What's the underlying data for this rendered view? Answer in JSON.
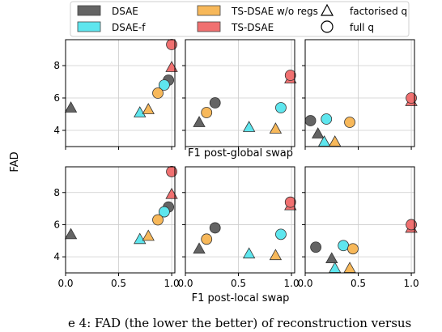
{
  "chart_data": {
    "type": "scatter",
    "ylabel": "FAD",
    "legend": {
      "placement": "top",
      "entries": [
        {
          "label": "DSAE",
          "kind": "swatch",
          "color": "#646464"
        },
        {
          "label": "TS-DSAE w/o regs",
          "kind": "swatch",
          "color": "#f7b85a"
        },
        {
          "label": "factorised q",
          "kind": "marker",
          "shape": "triangle"
        },
        {
          "label": "DSAE-f",
          "kind": "swatch",
          "color": "#5ee6ee"
        },
        {
          "label": "TS-DSAE",
          "kind": "swatch",
          "color": "#f07070"
        },
        {
          "label": "full q",
          "kind": "marker",
          "shape": "circle"
        }
      ]
    },
    "colors": {
      "DSAE": "#646464",
      "DSAE-f": "#5ee6ee",
      "TS-DSAE w/o regs": "#f7b85a",
      "TS-DSAE": "#f07070"
    },
    "ylim": [
      3,
      9.6
    ],
    "yticks": [
      4,
      6,
      8
    ],
    "xlim": [
      0,
      1.03
    ],
    "xticks": [
      0.0,
      0.5,
      1.0
    ],
    "xticklabels": [
      "0.0",
      "0.5",
      "1.0"
    ],
    "grid": true,
    "rows": [
      {
        "xlabel": "F1 post-global swap",
        "show_xticklabels": false,
        "panels": [
          {
            "points": [
              {
                "model": "DSAE",
                "q": "factorised",
                "x": 0.05,
                "y": 5.4
              },
              {
                "model": "DSAE-f",
                "q": "factorised",
                "x": 0.7,
                "y": 5.1
              },
              {
                "model": "TS-DSAE w/o regs",
                "q": "factorised",
                "x": 0.78,
                "y": 5.3
              },
              {
                "model": "TS-DSAE",
                "q": "factorised",
                "x": 1.0,
                "y": 7.9
              },
              {
                "model": "DSAE",
                "q": "full",
                "x": 0.97,
                "y": 7.1
              },
              {
                "model": "DSAE-f",
                "q": "full",
                "x": 0.93,
                "y": 6.8
              },
              {
                "model": "TS-DSAE w/o regs",
                "q": "full",
                "x": 0.87,
                "y": 6.3
              },
              {
                "model": "TS-DSAE",
                "q": "full",
                "x": 1.0,
                "y": 9.3
              }
            ]
          },
          {
            "points": [
              {
                "model": "DSAE",
                "q": "factorised",
                "x": 0.13,
                "y": 4.5
              },
              {
                "model": "DSAE-f",
                "q": "factorised",
                "x": 0.6,
                "y": 4.2
              },
              {
                "model": "TS-DSAE w/o regs",
                "q": "factorised",
                "x": 0.85,
                "y": 4.1
              },
              {
                "model": "TS-DSAE",
                "q": "factorised",
                "x": 0.99,
                "y": 7.2
              },
              {
                "model": "DSAE",
                "q": "full",
                "x": 0.28,
                "y": 5.7
              },
              {
                "model": "DSAE-f",
                "q": "full",
                "x": 0.9,
                "y": 5.4
              },
              {
                "model": "TS-DSAE w/o regs",
                "q": "full",
                "x": 0.2,
                "y": 5.1
              },
              {
                "model": "TS-DSAE",
                "q": "full",
                "x": 0.99,
                "y": 7.4
              }
            ]
          },
          {
            "points": [
              {
                "model": "DSAE",
                "q": "factorised",
                "x": 0.12,
                "y": 3.8
              },
              {
                "model": "DSAE-f",
                "q": "factorised",
                "x": 0.18,
                "y": 3.3
              },
              {
                "model": "TS-DSAE w/o regs",
                "q": "factorised",
                "x": 0.28,
                "y": 3.3
              },
              {
                "model": "TS-DSAE",
                "q": "factorised",
                "x": 1.0,
                "y": 5.8
              },
              {
                "model": "DSAE",
                "q": "full",
                "x": 0.05,
                "y": 4.6
              },
              {
                "model": "DSAE-f",
                "q": "full",
                "x": 0.2,
                "y": 4.7
              },
              {
                "model": "TS-DSAE w/o regs",
                "q": "full",
                "x": 0.42,
                "y": 4.5
              },
              {
                "model": "TS-DSAE",
                "q": "full",
                "x": 1.0,
                "y": 6.0
              }
            ]
          }
        ]
      },
      {
        "xlabel": "F1 post-local swap",
        "show_xticklabels": true,
        "panels": [
          {
            "points": [
              {
                "model": "DSAE",
                "q": "factorised",
                "x": 0.05,
                "y": 5.4
              },
              {
                "model": "DSAE-f",
                "q": "factorised",
                "x": 0.7,
                "y": 5.1
              },
              {
                "model": "TS-DSAE w/o regs",
                "q": "factorised",
                "x": 0.78,
                "y": 5.3
              },
              {
                "model": "TS-DSAE",
                "q": "factorised",
                "x": 1.0,
                "y": 7.9
              },
              {
                "model": "DSAE",
                "q": "full",
                "x": 0.97,
                "y": 7.1
              },
              {
                "model": "DSAE-f",
                "q": "full",
                "x": 0.93,
                "y": 6.8
              },
              {
                "model": "TS-DSAE w/o regs",
                "q": "full",
                "x": 0.87,
                "y": 6.3
              },
              {
                "model": "TS-DSAE",
                "q": "full",
                "x": 1.0,
                "y": 9.3
              }
            ]
          },
          {
            "points": [
              {
                "model": "DSAE",
                "q": "factorised",
                "x": 0.13,
                "y": 4.5
              },
              {
                "model": "DSAE-f",
                "q": "factorised",
                "x": 0.6,
                "y": 4.2
              },
              {
                "model": "TS-DSAE w/o regs",
                "q": "factorised",
                "x": 0.85,
                "y": 4.1
              },
              {
                "model": "TS-DSAE",
                "q": "factorised",
                "x": 0.99,
                "y": 7.2
              },
              {
                "model": "DSAE",
                "q": "full",
                "x": 0.28,
                "y": 5.8
              },
              {
                "model": "DSAE-f",
                "q": "full",
                "x": 0.9,
                "y": 5.4
              },
              {
                "model": "TS-DSAE w/o regs",
                "q": "full",
                "x": 0.2,
                "y": 5.1
              },
              {
                "model": "TS-DSAE",
                "q": "full",
                "x": 0.99,
                "y": 7.4
              }
            ]
          },
          {
            "points": [
              {
                "model": "DSAE",
                "q": "factorised",
                "x": 0.25,
                "y": 3.9
              },
              {
                "model": "DSAE-f",
                "q": "factorised",
                "x": 0.28,
                "y": 3.3
              },
              {
                "model": "TS-DSAE w/o regs",
                "q": "factorised",
                "x": 0.42,
                "y": 3.3
              },
              {
                "model": "TS-DSAE",
                "q": "factorised",
                "x": 1.0,
                "y": 5.8
              },
              {
                "model": "DSAE",
                "q": "full",
                "x": 0.1,
                "y": 4.6
              },
              {
                "model": "DSAE-f",
                "q": "full",
                "x": 0.36,
                "y": 4.7
              },
              {
                "model": "TS-DSAE w/o regs",
                "q": "full",
                "x": 0.45,
                "y": 4.5
              },
              {
                "model": "TS-DSAE",
                "q": "full",
                "x": 1.0,
                "y": 6.0
              }
            ]
          }
        ]
      }
    ]
  },
  "caption": "e 4: FAD (the lower the better) of reconstruction versus"
}
